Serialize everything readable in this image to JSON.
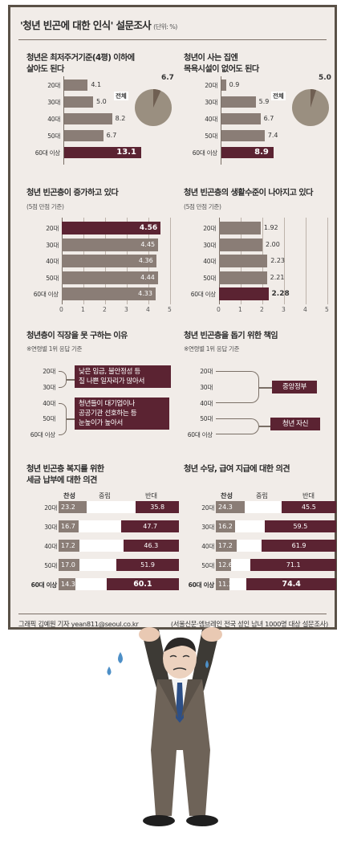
{
  "header": {
    "title": "'청년 빈곤에 대한 인식' 설문조사",
    "unit": "(단위: %)"
  },
  "colors": {
    "bar_light": "#8a7d76",
    "bar_dark": "#5b2332",
    "pie_light": "#9a8f80",
    "pie_dark": "#6f5f52",
    "line": "#7a6f66"
  },
  "chart_data": [
    {
      "type": "bar",
      "title": "청년은 최저주거기준(4평) 이하에\n살아도 된다",
      "categories": [
        "20대",
        "30대",
        "40대",
        "50대",
        "60대 이상"
      ],
      "values": [
        4.1,
        5.0,
        8.2,
        6.7,
        13.1
      ],
      "pie": {
        "label": "전체",
        "value": 6.7
      }
    },
    {
      "type": "bar",
      "title": "청년이 사는 집엔\n목욕시설이 없어도 된다",
      "categories": [
        "20대",
        "30대",
        "40대",
        "50대",
        "60대 이상"
      ],
      "values": [
        0.9,
        5.9,
        6.7,
        7.4,
        8.9
      ],
      "pie": {
        "label": "전체",
        "value": 5.0
      }
    },
    {
      "type": "bar",
      "title": "청년 빈곤층이 증가하고 있다",
      "subtitle": "(5점 만점 기준)",
      "categories": [
        "20대",
        "30대",
        "40대",
        "50대",
        "60대 이상"
      ],
      "values": [
        4.56,
        4.45,
        4.36,
        4.44,
        4.33
      ],
      "xticks": [
        "0",
        "1",
        "2",
        "3",
        "4",
        "5"
      ],
      "xlim": [
        0,
        5
      ]
    },
    {
      "type": "bar",
      "title": "청년 빈곤층의 생활수준이 나아지고 있다",
      "subtitle": "(5점 만점 기준)",
      "categories": [
        "20대",
        "30대",
        "40대",
        "50대",
        "60대 이상"
      ],
      "values": [
        1.92,
        2.0,
        2.23,
        2.21,
        2.28
      ],
      "xticks": [
        "0",
        "1",
        "2",
        "3",
        "4",
        "5"
      ],
      "xlim": [
        0,
        5
      ]
    },
    {
      "type": "table",
      "title": "청년층이 직장을 못 구하는 이유",
      "subtitle": "※연령별 1위 응답 기준",
      "categories": [
        "20대",
        "30대",
        "40대",
        "50대",
        "60대 이상"
      ],
      "answers": [
        {
          "text": "낮은 임금, 불안정성 등\n질 나쁜 일자리가 많아서",
          "groups": [
            "20대",
            "30대"
          ]
        },
        {
          "text": "청년들이 대기업이나\n공공기관 선호하는 등\n눈높이가 높아서",
          "groups": [
            "40대",
            "50대",
            "60대 이상"
          ]
        }
      ]
    },
    {
      "type": "table",
      "title": "청년 빈곤층을 돕기 위한 책임",
      "subtitle": "※연령별 1위 응답 기준",
      "categories": [
        "20대",
        "30대",
        "40대",
        "50대",
        "60대 이상"
      ],
      "answers": [
        {
          "text": "중앙정부",
          "groups": [
            "20대",
            "30대",
            "40대"
          ]
        },
        {
          "text": "청년 자신",
          "groups": [
            "50대",
            "60대 이상"
          ]
        }
      ]
    },
    {
      "type": "bar",
      "title": "청년 빈곤층 복지를 위한\n세금 납부에 대한 의견",
      "legend": [
        "찬성",
        "중립",
        "반대"
      ],
      "categories": [
        "20대",
        "30대",
        "40대",
        "50대",
        "60대 이상"
      ],
      "series": [
        {
          "name": "찬성",
          "values": [
            23.2,
            16.7,
            17.2,
            17.0,
            14.3
          ]
        },
        {
          "name": "중립",
          "values": [
            41.0,
            35.6,
            36.5,
            31.1,
            25.6
          ]
        },
        {
          "name": "반대",
          "values": [
            35.8,
            47.7,
            46.3,
            51.9,
            60.1
          ]
        }
      ]
    },
    {
      "type": "bar",
      "title": "청년 수당, 급여 지급에 대한 의견",
      "legend": [
        "찬성",
        "중립",
        "반대"
      ],
      "categories": [
        "20대",
        "30대",
        "40대",
        "50대",
        "60대 이상"
      ],
      "series": [
        {
          "name": "찬성",
          "values": [
            24.3,
            16.2,
            17.2,
            12.6,
            11.3
          ]
        },
        {
          "name": "중립",
          "values": [
            30.2,
            24.3,
            20.9,
            16.3,
            14.3
          ]
        },
        {
          "name": "반대",
          "values": [
            45.5,
            59.5,
            61.9,
            71.1,
            74.4
          ]
        }
      ]
    }
  ],
  "footer": {
    "credit": "그래픽 김예원 기자 yean811@seoul.co.kr",
    "source": "(서울신문·엠브레인 전국 성인 남녀 1000명 대상 설문조사)"
  }
}
